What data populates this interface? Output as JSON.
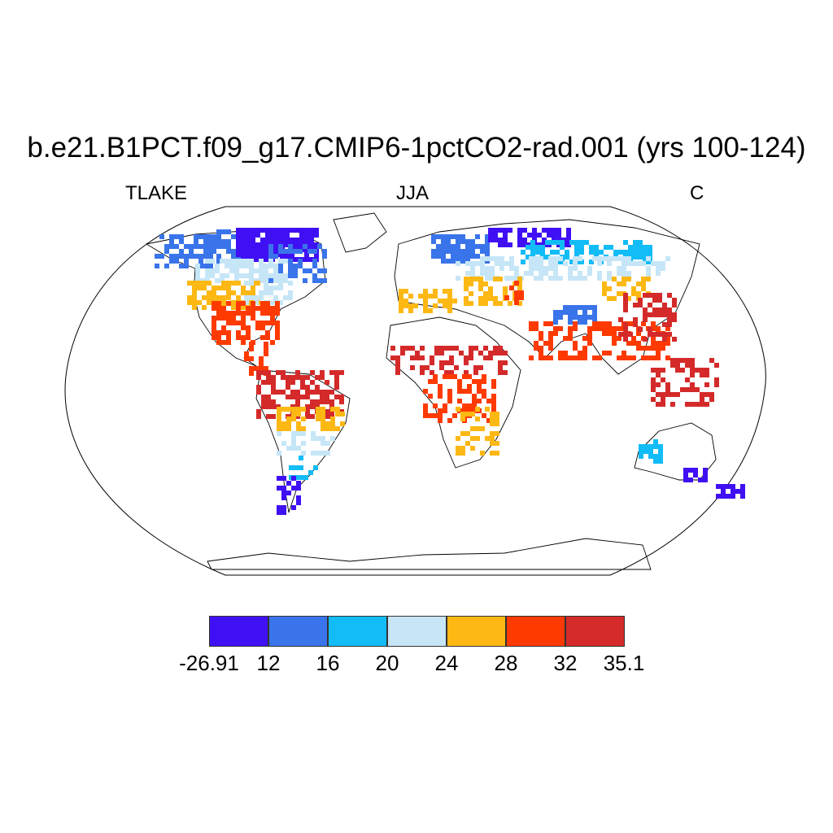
{
  "title": "b.e21.B1PCT.f09_g17.CMIP6-1pctCO2-rad.001 (yrs 100-124)",
  "left_label": "TLAKE",
  "center_label": "JJA",
  "right_label": "C",
  "colorbar": {
    "colors": [
      "#4010f5",
      "#3a74ea",
      "#12bcf7",
      "#c6e6f7",
      "#fdb814",
      "#ff3a00",
      "#d42a2a"
    ],
    "labels": [
      "-26.91",
      "12",
      "16",
      "20",
      "24",
      "28",
      "32",
      "35.1"
    ]
  }
}
